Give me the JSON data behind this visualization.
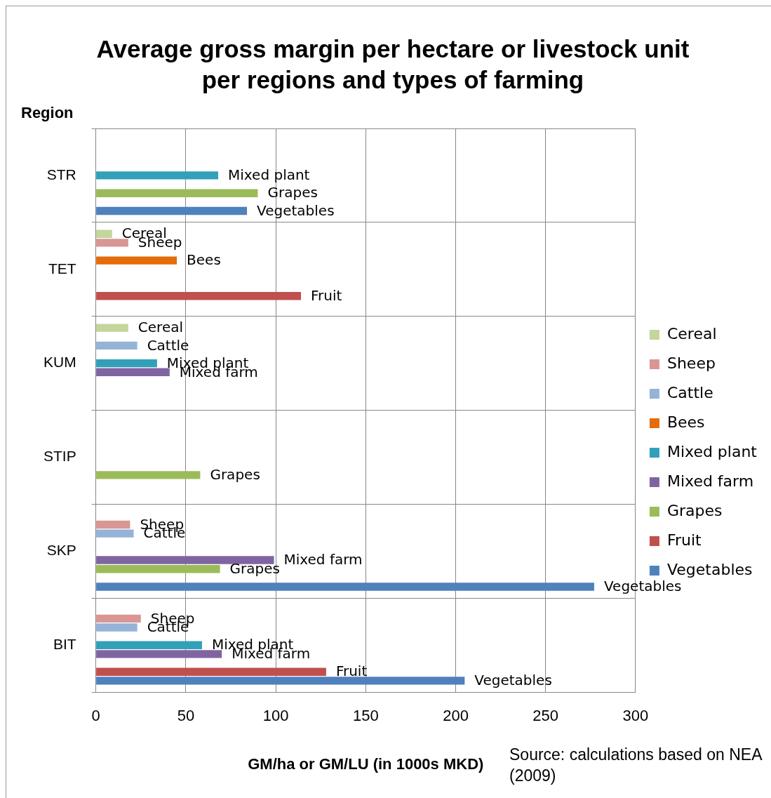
{
  "chart_data": {
    "type": "bar",
    "orientation": "horizontal",
    "title": "Average gross margin per hectare or livestock unit  per regions and types of farming",
    "ylabel": "Region",
    "xlabel": "GM/ha or GM/LU (in 1000s MKD)",
    "annotations": [
      "Source: calculations based on NEA (2009)"
    ],
    "categories": [
      "STR",
      "TET",
      "KUM",
      "STIP",
      "SKP",
      "BIT"
    ],
    "series": [
      {
        "name": "Cereal",
        "color": "#c3d69b",
        "values": [
          null,
          9,
          18,
          null,
          null,
          null
        ]
      },
      {
        "name": "Sheep",
        "color": "#d99694",
        "values": [
          null,
          18,
          null,
          null,
          19,
          25
        ]
      },
      {
        "name": "Cattle",
        "color": "#95b3d7",
        "values": [
          null,
          null,
          23,
          null,
          21,
          23
        ]
      },
      {
        "name": "Bees",
        "color": "#e46c0a",
        "values": [
          null,
          45,
          null,
          null,
          null,
          null
        ]
      },
      {
        "name": "Mixed plant",
        "color": "#31a0b8",
        "values": [
          68,
          null,
          34,
          null,
          null,
          59
        ]
      },
      {
        "name": "Mixed farm",
        "color": "#8064a2",
        "values": [
          null,
          null,
          41,
          null,
          99,
          70
        ]
      },
      {
        "name": "Grapes",
        "color": "#9bbb59",
        "values": [
          90,
          null,
          null,
          58,
          69,
          null
        ]
      },
      {
        "name": "Fruit",
        "color": "#c0504d",
        "values": [
          null,
          114,
          null,
          null,
          null,
          128
        ]
      },
      {
        "name": "Vegetables",
        "color": "#4f81bd",
        "values": [
          84,
          null,
          null,
          null,
          277,
          205
        ]
      }
    ],
    "xlim": [
      0,
      300
    ],
    "xticks": [
      0,
      50,
      100,
      150,
      200,
      250,
      300
    ],
    "grid": true,
    "legend": "right"
  }
}
